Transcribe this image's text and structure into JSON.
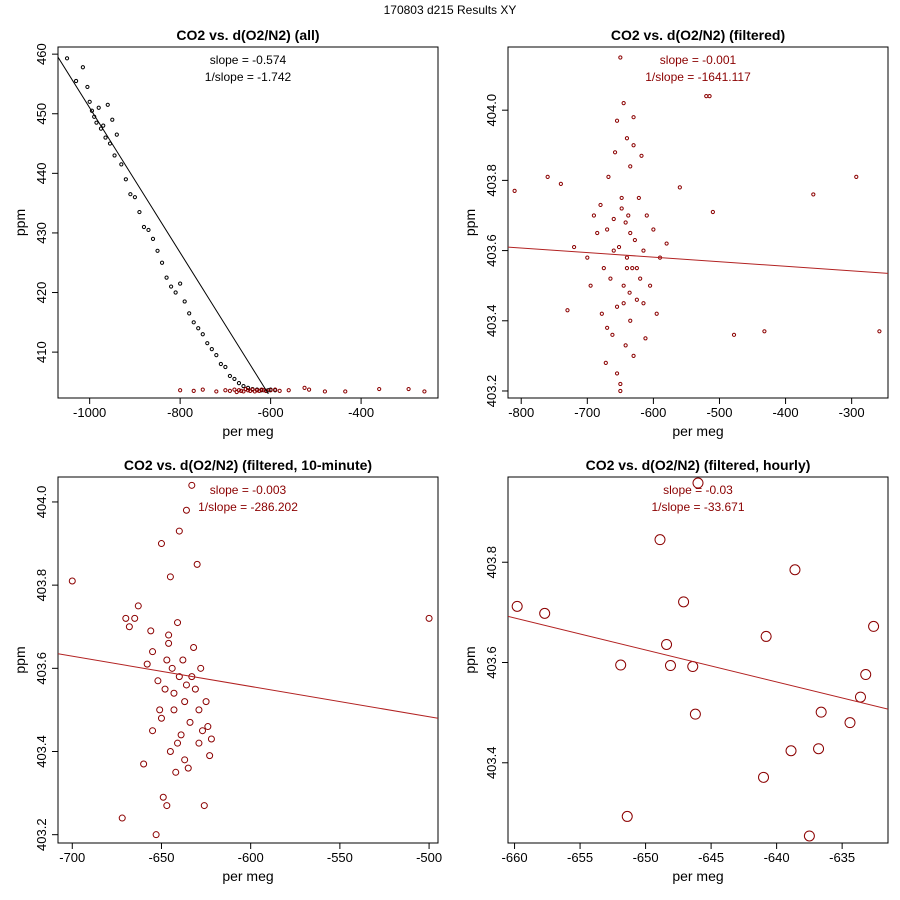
{
  "page_title": "170803   d215   Results XY",
  "colors": {
    "all_points": "#000000",
    "filtered": "#8b0000",
    "axis": "#000000",
    "fit_line_all": "#000000",
    "fit_line_filtered": "#b22222"
  },
  "chart_data": [
    {
      "type": "scatter",
      "title": "CO2 vs. d(O2/N2) (all)",
      "xlabel": "per meg",
      "ylabel": "ppm",
      "xlim": [
        -1070,
        -230
      ],
      "ylim": [
        402.3,
        461.2
      ],
      "xticks": [
        -1000,
        -800,
        -600,
        -400
      ],
      "xtick_labels": [
        "-1000",
        "-800",
        "-600",
        "-400"
      ],
      "yticks": [
        410,
        420,
        430,
        440,
        450,
        460
      ],
      "ytick_labels": [
        "410",
        "420",
        "430",
        "440",
        "450",
        "460"
      ],
      "slope_text": "slope = -0.574",
      "inv_slope_text": "1/slope = -1.742",
      "annotation_color": "#000000",
      "line_color": "#000000",
      "fit_line": {
        "x": [
          -1070,
          -605
        ],
        "y": [
          459.5,
          403.0
        ]
      },
      "point_radius": 1.6,
      "series": [
        {
          "name": "all",
          "color": "#000000",
          "x": [
            -1050,
            -1030,
            -1015,
            -1005,
            -1000,
            -995,
            -990,
            -985,
            -980,
            -975,
            -970,
            -965,
            -960,
            -955,
            -950,
            -945,
            -940,
            -930,
            -920,
            -910,
            -900,
            -890,
            -880,
            -870,
            -860,
            -850,
            -840,
            -830,
            -820,
            -810,
            -800,
            -790,
            -780,
            -770,
            -760,
            -750,
            -740,
            -730,
            -720,
            -710,
            -700,
            -690,
            -680,
            -670,
            -660,
            -650,
            -640,
            -630,
            -620,
            -610,
            -605,
            -600,
            -590
          ],
          "y": [
            459.3,
            455.5,
            457.8,
            454.5,
            452.0,
            450.5,
            449.5,
            448.5,
            451.0,
            447.5,
            448.0,
            446.0,
            451.5,
            445.0,
            449.0,
            443.0,
            446.5,
            441.5,
            439.0,
            436.5,
            436.0,
            433.5,
            431.0,
            430.5,
            429.0,
            427.0,
            425.0,
            422.5,
            421.0,
            420.0,
            421.5,
            418.5,
            416.5,
            415.0,
            414.0,
            413.0,
            411.5,
            410.5,
            409.5,
            408.0,
            407.5,
            406.0,
            405.5,
            404.8,
            404.3,
            404.0,
            403.8,
            403.7,
            403.6,
            403.5,
            403.6,
            403.7,
            403.6
          ]
        },
        {
          "name": "filtered",
          "color": "#8b0000",
          "x": [
            -800,
            -770,
            -750,
            -720,
            -700,
            -690,
            -680,
            -675,
            -670,
            -665,
            -660,
            -655,
            -650,
            -645,
            -640,
            -635,
            -630,
            -625,
            -620,
            -615,
            -610,
            -600,
            -590,
            -580,
            -560,
            -525,
            -515,
            -480,
            -435,
            -360,
            -295,
            -260
          ],
          "y": [
            403.6,
            403.5,
            403.7,
            403.4,
            403.6,
            403.5,
            403.7,
            403.3,
            403.6,
            403.5,
            403.4,
            403.8,
            403.6,
            403.5,
            403.7,
            403.4,
            403.6,
            403.5,
            403.7,
            403.6,
            403.5,
            403.6,
            403.7,
            403.5,
            403.6,
            404.0,
            403.7,
            403.4,
            403.4,
            403.8,
            403.8,
            403.4
          ]
        }
      ]
    },
    {
      "type": "scatter",
      "title": "CO2 vs. d(O2/N2) (filtered)",
      "xlabel": "per meg",
      "ylabel": "ppm",
      "xlim": [
        -820,
        -245
      ],
      "ylim": [
        403.18,
        404.18
      ],
      "xticks": [
        -800,
        -700,
        -600,
        -500,
        -400,
        -300
      ],
      "xtick_labels": [
        "-800",
        "-700",
        "-600",
        "-500",
        "-400",
        "-300"
      ],
      "yticks": [
        403.2,
        403.4,
        403.6,
        403.8,
        404.0
      ],
      "ytick_labels": [
        "403.2",
        "403.4",
        "403.6",
        "403.8",
        "404.0"
      ],
      "slope_text": "slope = -0.001",
      "inv_slope_text": "1/slope = -1641.117",
      "annotation_color": "#8b0000",
      "line_color": "#b22222",
      "fit_line": {
        "x": [
          -820,
          -245
        ],
        "y": [
          403.61,
          403.535
        ]
      },
      "point_radius": 1.6,
      "series": [
        {
          "name": "filtered",
          "color": "#8b0000",
          "x": [
            -810,
            -760,
            -740,
            -730,
            -720,
            -700,
            -695,
            -690,
            -685,
            -680,
            -678,
            -675,
            -672,
            -670,
            -668,
            -665,
            -662,
            -660,
            -658,
            -655,
            -655,
            -652,
            -650,
            -650,
            -648,
            -645,
            -645,
            -642,
            -640,
            -640,
            -638,
            -635,
            -635,
            -632,
            -630,
            -630,
            -628,
            -625,
            -622,
            -620,
            -618,
            -615,
            -612,
            -610,
            -605,
            -600,
            -595,
            -590,
            -580,
            -560,
            -520,
            -515,
            -510,
            -478,
            -432,
            -358,
            -293,
            -258,
            -655,
            -650,
            -645,
            -640,
            -635,
            -630,
            -660,
            -670,
            -625,
            -615,
            -648,
            -642,
            -636
          ],
          "y": [
            403.77,
            403.81,
            403.79,
            403.43,
            403.61,
            403.58,
            403.5,
            403.7,
            403.65,
            403.73,
            403.42,
            403.55,
            403.28,
            403.66,
            403.81,
            403.52,
            403.36,
            403.69,
            403.88,
            403.44,
            403.97,
            403.61,
            403.22,
            404.15,
            403.75,
            403.5,
            404.02,
            403.33,
            403.58,
            403.92,
            403.7,
            403.4,
            403.84,
            403.55,
            403.98,
            403.3,
            403.63,
            403.46,
            403.75,
            403.52,
            403.87,
            403.6,
            403.35,
            403.7,
            403.5,
            403.66,
            403.42,
            403.58,
            403.62,
            403.78,
            404.04,
            404.04,
            403.71,
            403.36,
            403.37,
            403.76,
            403.81,
            403.37,
            403.25,
            403.2,
            403.45,
            403.55,
            403.65,
            403.9,
            403.6,
            403.38,
            403.55,
            403.45,
            403.72,
            403.68,
            403.48
          ]
        }
      ]
    },
    {
      "type": "scatter",
      "title": "CO2 vs. d(O2/N2) (filtered, 10-minute)",
      "xlabel": "per meg",
      "ylabel": "ppm",
      "xlim": [
        -708,
        -495
      ],
      "ylim": [
        403.18,
        404.06
      ],
      "xticks": [
        -700,
        -650,
        -600,
        -550,
        -500
      ],
      "xtick_labels": [
        "-700",
        "-650",
        "-600",
        "-550",
        "-500"
      ],
      "yticks": [
        403.2,
        403.4,
        403.6,
        403.8,
        404.0
      ],
      "ytick_labels": [
        "403.2",
        "403.4",
        "403.6",
        "403.8",
        "404.0"
      ],
      "slope_text": "slope = -0.003",
      "inv_slope_text": "1/slope = -286.202",
      "annotation_color": "#8b0000",
      "line_color": "#b22222",
      "fit_line": {
        "x": [
          -708,
          -495
        ],
        "y": [
          403.635,
          403.48
        ]
      },
      "point_radius": 3,
      "series": [
        {
          "name": "10-minute",
          "color": "#8b0000",
          "x": [
            -700,
            -672,
            -670,
            -668,
            -665,
            -663,
            -660,
            -658,
            -656,
            -655,
            -653,
            -652,
            -650,
            -650,
            -649,
            -648,
            -647,
            -646,
            -645,
            -645,
            -644,
            -643,
            -642,
            -641,
            -640,
            -640,
            -639,
            -638,
            -637,
            -636,
            -635,
            -634,
            -633,
            -632,
            -631,
            -630,
            -629,
            -628,
            -627,
            -626,
            -625,
            -624,
            -623,
            -622,
            -500,
            -647,
            -643,
            -637,
            -633,
            -655,
            -651,
            -646,
            -641,
            -636,
            -629
          ],
          "y": [
            403.81,
            403.24,
            403.72,
            403.7,
            403.72,
            403.75,
            403.37,
            403.61,
            403.69,
            403.45,
            403.2,
            403.57,
            403.9,
            403.48,
            403.29,
            403.55,
            403.27,
            403.66,
            403.82,
            403.4,
            403.6,
            403.5,
            403.35,
            403.71,
            403.93,
            403.58,
            403.44,
            403.62,
            403.52,
            403.98,
            403.36,
            403.47,
            404.04,
            403.65,
            403.55,
            403.85,
            403.42,
            403.6,
            403.45,
            403.27,
            403.52,
            403.46,
            403.39,
            403.43,
            403.72,
            403.62,
            403.54,
            403.38,
            403.58,
            403.64,
            403.5,
            403.68,
            403.42,
            403.56,
            403.5
          ]
        }
      ]
    },
    {
      "type": "scatter",
      "title": "CO2 vs. d(O2/N2) (filtered, hourly)",
      "xlabel": "per meg",
      "ylabel": "ppm",
      "xlim": [
        -660.5,
        -631.5
      ],
      "ylim": [
        403.24,
        403.97
      ],
      "xticks": [
        -660,
        -655,
        -650,
        -645,
        -640,
        -635
      ],
      "xtick_labels": [
        "-660",
        "-655",
        "-650",
        "-645",
        "-640",
        "-635"
      ],
      "yticks": [
        403.4,
        403.6,
        403.8
      ],
      "ytick_labels": [
        "403.4",
        "403.6",
        "403.8"
      ],
      "slope_text": "slope = -0.03",
      "inv_slope_text": "1/slope = -33.671",
      "annotation_color": "#8b0000",
      "line_color": "#b22222",
      "fit_line": {
        "x": [
          -660.5,
          -631.5
        ],
        "y": [
          403.692,
          403.507
        ]
      },
      "point_radius": 5,
      "series": [
        {
          "name": "hourly",
          "color": "#8b0000",
          "x": [
            -659.8,
            -657.7,
            -651.9,
            -651.4,
            -648.9,
            -648.4,
            -648.1,
            -647.1,
            -646.4,
            -646.2,
            -646.0,
            -641.0,
            -640.8,
            -638.9,
            -638.6,
            -637.5,
            -636.8,
            -636.6,
            -634.4,
            -633.6,
            -633.2,
            -632.6
          ],
          "y": [
            403.712,
            403.698,
            403.595,
            403.293,
            403.845,
            403.636,
            403.594,
            403.721,
            403.592,
            403.497,
            403.958,
            403.371,
            403.652,
            403.424,
            403.785,
            403.254,
            403.428,
            403.501,
            403.48,
            403.531,
            403.576,
            403.672
          ]
        }
      ]
    }
  ]
}
